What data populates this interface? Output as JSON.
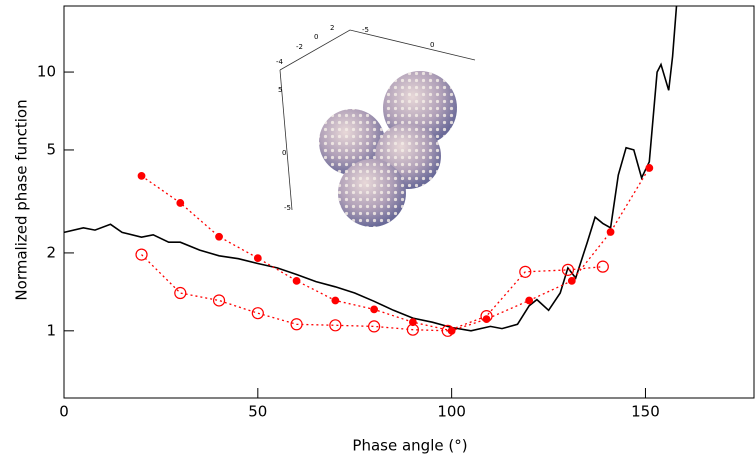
{
  "chart_data": {
    "type": "line",
    "xlabel": "Phase angle (°)",
    "ylabel": "Normalized phase function",
    "xlim": [
      0,
      178
    ],
    "ylim": [
      0.55,
      18
    ],
    "log_y": true,
    "xticks": [
      0,
      50,
      100,
      150
    ],
    "yticks": [
      1,
      2,
      5,
      10
    ],
    "series": [
      {
        "color": "#000000",
        "linestyle": "solid",
        "marker": null,
        "x": [
          0,
          5,
          8,
          12,
          15,
          20,
          23,
          27,
          30,
          35,
          40,
          45,
          50,
          55,
          60,
          65,
          70,
          75,
          80,
          85,
          90,
          95,
          100,
          105,
          110,
          113,
          117,
          120,
          122,
          125,
          128,
          130,
          132,
          135,
          137,
          139,
          141,
          143,
          145,
          147,
          149,
          151,
          153,
          154,
          156,
          157,
          158
        ],
        "values": [
          2.4,
          2.5,
          2.45,
          2.58,
          2.4,
          2.3,
          2.35,
          2.2,
          2.2,
          2.05,
          1.95,
          1.9,
          1.82,
          1.75,
          1.65,
          1.55,
          1.48,
          1.4,
          1.3,
          1.2,
          1.12,
          1.08,
          1.03,
          1.0,
          1.04,
          1.02,
          1.06,
          1.25,
          1.32,
          1.2,
          1.4,
          1.75,
          1.6,
          2.2,
          2.75,
          2.6,
          2.5,
          4.0,
          5.1,
          5.0,
          3.9,
          4.5,
          10,
          10.7,
          8.5,
          11.5,
          18
        ]
      },
      {
        "color": "#ff0000",
        "linestyle": "dotted",
        "marker": "filled",
        "x": [
          20,
          30,
          40,
          50,
          60,
          70,
          80,
          90,
          100,
          109,
          120,
          131,
          141,
          151
        ],
        "values": [
          3.97,
          3.12,
          2.31,
          1.91,
          1.56,
          1.31,
          1.21,
          1.08,
          1.0,
          1.11,
          1.31,
          1.56,
          2.41,
          4.26
        ]
      },
      {
        "color": "#ff0000",
        "linestyle": "dotted",
        "marker": "open",
        "x": [
          20,
          30,
          40,
          50,
          60,
          70,
          80,
          90,
          99,
          109,
          119,
          130,
          139
        ],
        "values": [
          1.97,
          1.4,
          1.31,
          1.17,
          1.06,
          1.05,
          1.04,
          1.01,
          1.0,
          1.14,
          1.69,
          1.72,
          1.77
        ]
      }
    ]
  },
  "inset": {
    "labels": [
      "2",
      "0",
      "-2",
      "-4",
      "-5",
      "0",
      "5",
      "0",
      "-5"
    ]
  }
}
